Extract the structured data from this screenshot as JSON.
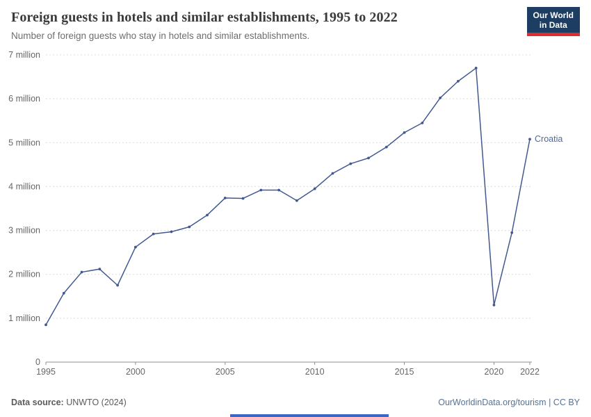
{
  "header": {
    "title": "Foreign guests in hotels and similar establishments, 1995 to 2022",
    "subtitle": "Number of foreign guests who stay in hotels and similar establishments.",
    "logo": {
      "line1": "Our World",
      "line2": "in Data"
    }
  },
  "chart_data": {
    "type": "line",
    "title": "Foreign guests in hotels and similar establishments, 1995 to 2022",
    "xlabel": "",
    "ylabel": "",
    "unit": "million",
    "xlim": [
      1995,
      2022
    ],
    "ylim_millions": [
      0,
      7
    ],
    "x": [
      1995,
      1996,
      1997,
      1998,
      1999,
      2000,
      2001,
      2002,
      2003,
      2004,
      2005,
      2006,
      2007,
      2008,
      2009,
      2010,
      2011,
      2012,
      2013,
      2014,
      2015,
      2016,
      2017,
      2018,
      2019,
      2020,
      2021,
      2022
    ],
    "series": [
      {
        "name": "Croatia",
        "values_millions": [
          0.85,
          1.57,
          2.05,
          2.12,
          1.75,
          2.62,
          2.92,
          2.97,
          3.08,
          3.35,
          3.74,
          3.73,
          3.92,
          3.92,
          3.68,
          3.95,
          4.3,
          4.52,
          4.65,
          4.9,
          5.23,
          5.45,
          6.02,
          6.4,
          6.7,
          1.3,
          2.95,
          5.08
        ]
      }
    ],
    "ytick_values": [
      0,
      1,
      2,
      3,
      4,
      5,
      6,
      7
    ],
    "ytick_labels": [
      "0",
      "1 million",
      "2 million",
      "3 million",
      "4 million",
      "5 million",
      "6 million",
      "7 million"
    ],
    "xticks": [
      1995,
      2000,
      2005,
      2010,
      2015,
      2020,
      2022
    ],
    "grid": true,
    "legend": "end-of-line label"
  },
  "colors": {
    "line": "#41598f",
    "entity_label": "#4c6a9c",
    "gridline": "#dcdcdc",
    "axis": "#8f8f8f",
    "tick_text": "#666666",
    "logo_bg": "#1d3d63",
    "logo_stripe": "#dc2e32",
    "accent_bar": "#3a66c4"
  },
  "footer": {
    "source_label": "Data source:",
    "source_value": " UNWTO (2024)",
    "right_text": "OurWorldinData.org/tourism | CC BY"
  }
}
